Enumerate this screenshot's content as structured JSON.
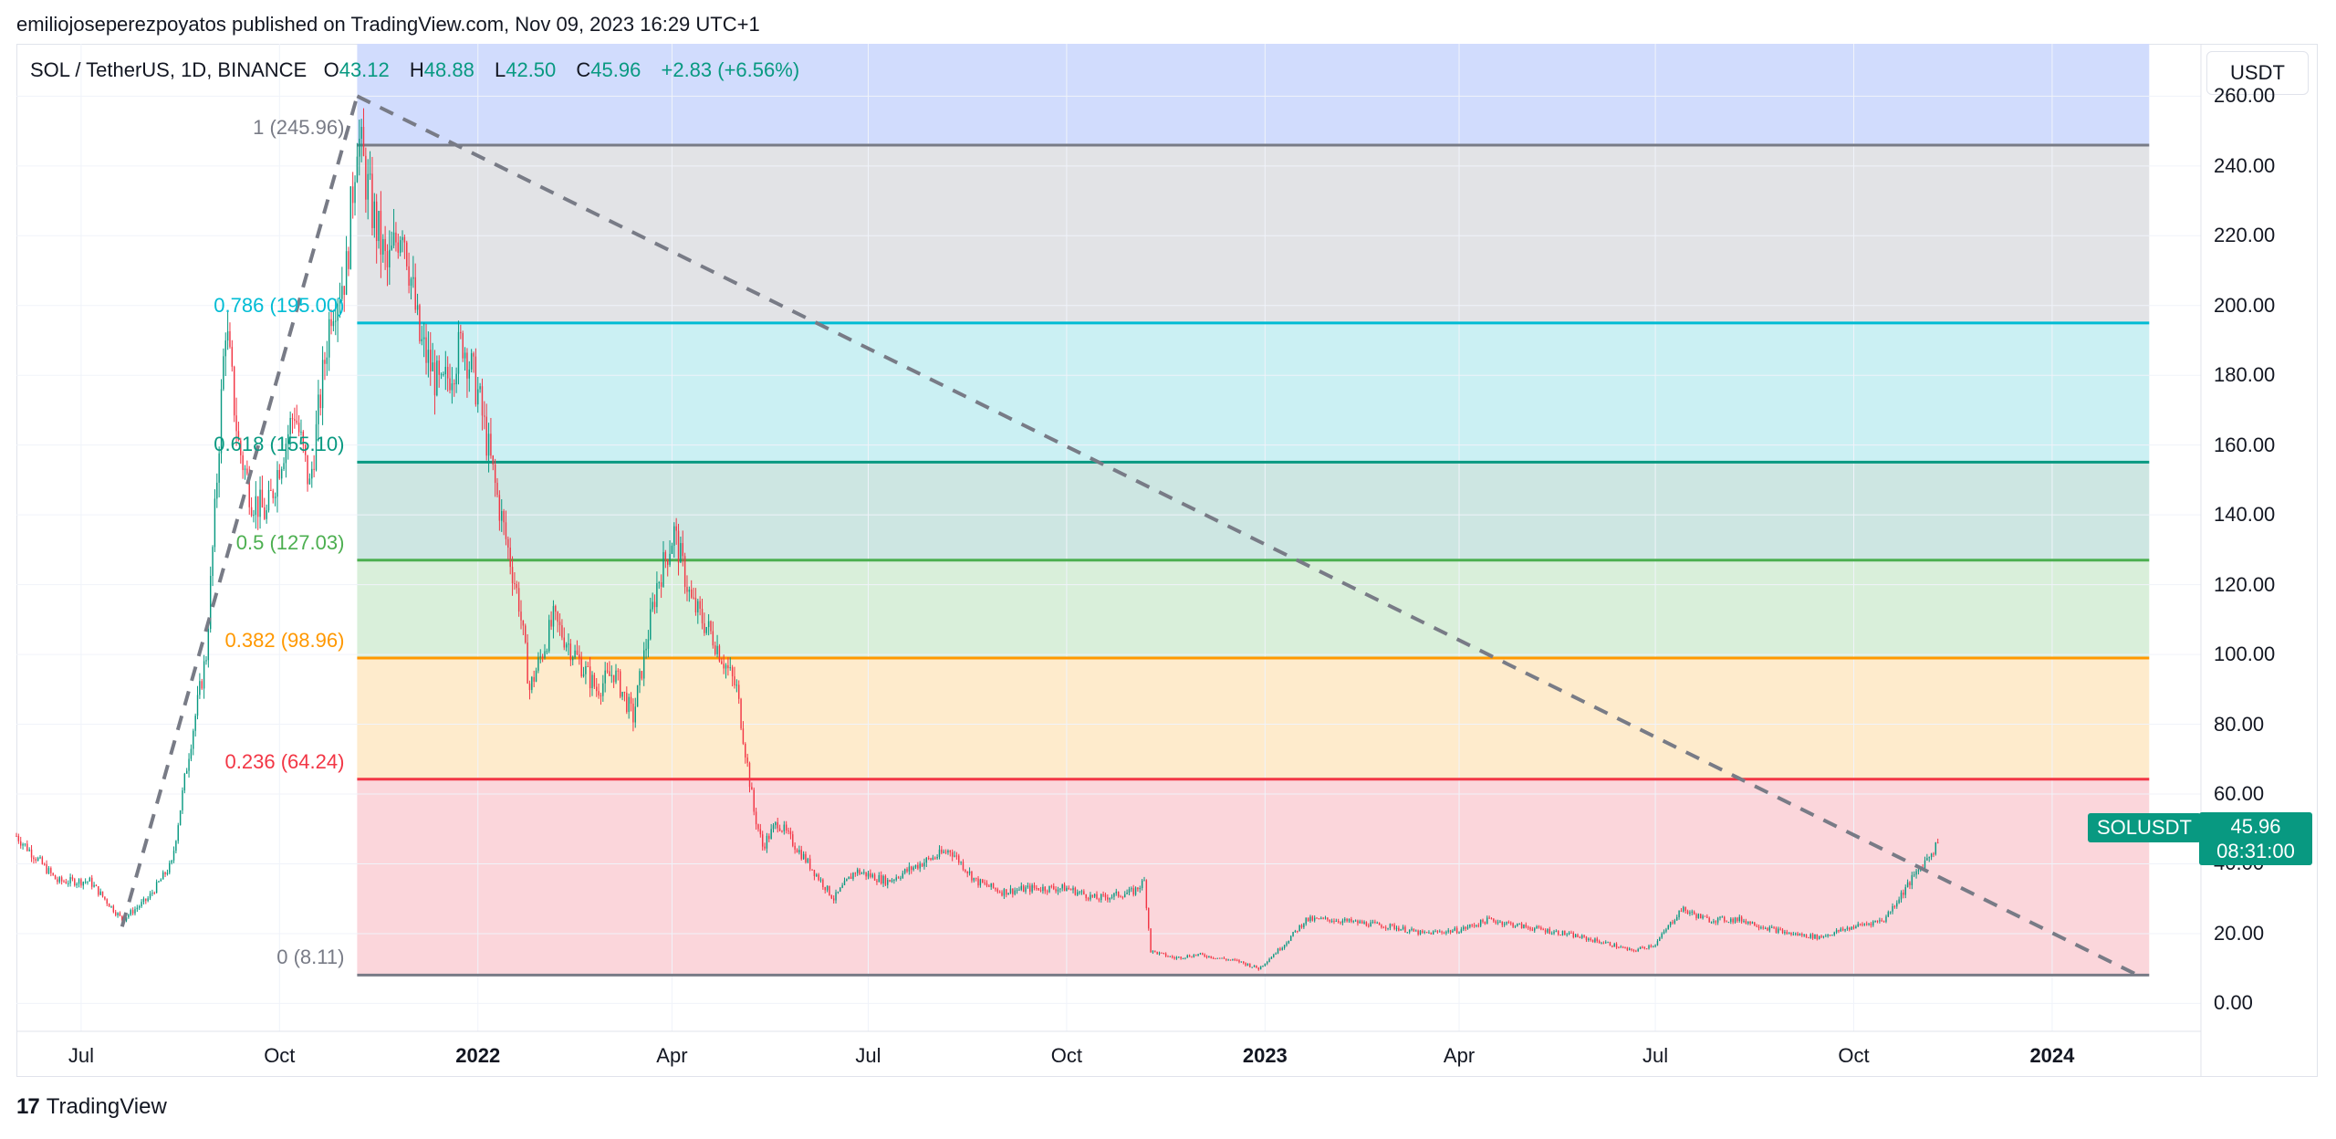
{
  "header": {
    "published_line": "emiliojoseperezpoyatos published on TradingView.com, Nov 09, 2023 16:29 UTC+1"
  },
  "legend": {
    "symbol": "SOL / TetherUS, 1D, BINANCE",
    "o_label": "O",
    "o_value": "43.12",
    "h_label": "H",
    "h_value": "48.88",
    "l_label": "L",
    "l_value": "42.50",
    "c_label": "C",
    "c_value": "45.96",
    "change": "+2.83 (+6.56%)"
  },
  "currency_button": "USDT",
  "price_tag": {
    "symbol": "SOLUSDT",
    "last_price": "45.96",
    "countdown": "08:31:00"
  },
  "footer": {
    "brand": "TradingView",
    "logo_glyph": "17"
  },
  "colors": {
    "up": "#089981",
    "down": "#f23645",
    "fib_1": "#787b86",
    "fib_0786": "#00bcd4",
    "fib_0618": "#089981",
    "fib_05": "#4caf50",
    "fib_0382": "#ff9800",
    "fib_0236": "#f23645",
    "fib_0": "#787b86",
    "zone_top": "#d1dcfd",
    "zone_1_0786": "#e2e3e6",
    "zone_0786_0618": "#cbf0f3",
    "zone_0618_05": "#cde6e2",
    "zone_05_0382": "#d9efda",
    "zone_0382_0236": "#feebcc",
    "zone_0236_0": "#fbd6db",
    "trendline": "#787b86"
  },
  "chart_data": {
    "type": "candlestick",
    "symbol": "SOL / TetherUS",
    "interval": "1D",
    "exchange": "BINANCE",
    "ylim": [
      -8,
      275
    ],
    "y_ticks": [
      "260.00",
      "240.00",
      "220.00",
      "200.00",
      "180.00",
      "160.00",
      "140.00",
      "120.00",
      "100.00",
      "80.00",
      "60.00",
      "40.00",
      "20.00",
      "0.00"
    ],
    "y_tick_values": [
      260,
      240,
      220,
      200,
      180,
      160,
      140,
      120,
      100,
      80,
      60,
      40,
      20,
      0
    ],
    "x_ticks": [
      {
        "label": "Jul",
        "date": "2021-07-01",
        "bold": false
      },
      {
        "label": "Oct",
        "date": "2021-10-01",
        "bold": false
      },
      {
        "label": "2022",
        "date": "2022-01-01",
        "bold": true
      },
      {
        "label": "Apr",
        "date": "2022-04-01",
        "bold": false
      },
      {
        "label": "Jul",
        "date": "2022-07-01",
        "bold": false
      },
      {
        "label": "Oct",
        "date": "2022-10-01",
        "bold": false
      },
      {
        "label": "2023",
        "date": "2023-01-01",
        "bold": true
      },
      {
        "label": "Apr",
        "date": "2023-04-01",
        "bold": false
      },
      {
        "label": "Jul",
        "date": "2023-07-01",
        "bold": false
      },
      {
        "label": "Oct",
        "date": "2023-10-01",
        "bold": false
      },
      {
        "label": "2024",
        "date": "2024-01-01",
        "bold": true
      }
    ],
    "fibonacci": {
      "start_date": "2021-11-06",
      "end_date": "2024-02-15",
      "levels": [
        {
          "ratio": 1,
          "label": "1 (245.96)",
          "price": 245.96
        },
        {
          "ratio": 0.786,
          "label": "0.786 (195.00)",
          "price": 195.0
        },
        {
          "ratio": 0.618,
          "label": "0.618 (155.10)",
          "price": 155.1
        },
        {
          "ratio": 0.5,
          "label": "0.5 (127.03)",
          "price": 127.03
        },
        {
          "ratio": 0.382,
          "label": "0.382 (98.96)",
          "price": 98.96
        },
        {
          "ratio": 0.236,
          "label": "0.236 (64.24)",
          "price": 64.24
        },
        {
          "ratio": 0,
          "label": "0 (8.11)",
          "price": 8.11
        }
      ]
    },
    "trendlines": [
      {
        "from": {
          "date": "2021-07-20",
          "price": 22
        },
        "to": {
          "date": "2021-11-06",
          "price": 260
        }
      },
      {
        "from": {
          "date": "2021-11-06",
          "price": 260
        },
        "to": {
          "date": "2024-02-10",
          "price": 8
        }
      }
    ],
    "price_path": [
      [
        "2021-06-01",
        48
      ],
      [
        "2021-06-20",
        35
      ],
      [
        "2021-07-05",
        35
      ],
      [
        "2021-07-20",
        24
      ],
      [
        "2021-08-01",
        30
      ],
      [
        "2021-08-12",
        40
      ],
      [
        "2021-08-20",
        72
      ],
      [
        "2021-08-28",
        100
      ],
      [
        "2021-09-01",
        140
      ],
      [
        "2021-09-06",
        195
      ],
      [
        "2021-09-12",
        160
      ],
      [
        "2021-09-18",
        145
      ],
      [
        "2021-09-25",
        140
      ],
      [
        "2021-10-01",
        155
      ],
      [
        "2021-10-08",
        170
      ],
      [
        "2021-10-15",
        148
      ],
      [
        "2021-10-25",
        200
      ],
      [
        "2021-11-01",
        210
      ],
      [
        "2021-11-06",
        250
      ],
      [
        "2021-11-12",
        230
      ],
      [
        "2021-11-20",
        210
      ],
      [
        "2021-11-27",
        225
      ],
      [
        "2021-12-05",
        190
      ],
      [
        "2021-12-15",
        175
      ],
      [
        "2021-12-25",
        190
      ],
      [
        "2022-01-01",
        175
      ],
      [
        "2022-01-10",
        145
      ],
      [
        "2022-01-20",
        115
      ],
      [
        "2022-01-25",
        90
      ],
      [
        "2022-02-05",
        110
      ],
      [
        "2022-02-15",
        100
      ],
      [
        "2022-02-25",
        90
      ],
      [
        "2022-03-05",
        95
      ],
      [
        "2022-03-14",
        82
      ],
      [
        "2022-03-25",
        120
      ],
      [
        "2022-04-02",
        135
      ],
      [
        "2022-04-10",
        115
      ],
      [
        "2022-04-20",
        105
      ],
      [
        "2022-05-01",
        90
      ],
      [
        "2022-05-09",
        55
      ],
      [
        "2022-05-13",
        45
      ],
      [
        "2022-05-20",
        52
      ],
      [
        "2022-06-01",
        42
      ],
      [
        "2022-06-15",
        30
      ],
      [
        "2022-06-25",
        38
      ],
      [
        "2022-07-10",
        35
      ],
      [
        "2022-07-25",
        40
      ],
      [
        "2022-08-08",
        44
      ],
      [
        "2022-08-20",
        35
      ],
      [
        "2022-09-01",
        32
      ],
      [
        "2022-09-15",
        33
      ],
      [
        "2022-10-01",
        33
      ],
      [
        "2022-10-15",
        30
      ],
      [
        "2022-11-01",
        32
      ],
      [
        "2022-11-06",
        35
      ],
      [
        "2022-11-09",
        15
      ],
      [
        "2022-11-20",
        13
      ],
      [
        "2022-12-01",
        14
      ],
      [
        "2022-12-20",
        12
      ],
      [
        "2022-12-29",
        10
      ],
      [
        "2023-01-10",
        17
      ],
      [
        "2023-01-20",
        24
      ],
      [
        "2023-02-01",
        24
      ],
      [
        "2023-02-15",
        23
      ],
      [
        "2023-03-01",
        22
      ],
      [
        "2023-03-15",
        20
      ],
      [
        "2023-04-01",
        21
      ],
      [
        "2023-04-15",
        24
      ],
      [
        "2023-05-01",
        22
      ],
      [
        "2023-05-20",
        20
      ],
      [
        "2023-06-10",
        17
      ],
      [
        "2023-06-20",
        15
      ],
      [
        "2023-07-01",
        17
      ],
      [
        "2023-07-13",
        27
      ],
      [
        "2023-07-25",
        24
      ],
      [
        "2023-08-10",
        24
      ],
      [
        "2023-08-20",
        22
      ],
      [
        "2023-09-01",
        20
      ],
      [
        "2023-09-15",
        19
      ],
      [
        "2023-10-01",
        22
      ],
      [
        "2023-10-15",
        24
      ],
      [
        "2023-10-25",
        33
      ],
      [
        "2023-11-01",
        39
      ],
      [
        "2023-11-09",
        45.96
      ]
    ]
  }
}
